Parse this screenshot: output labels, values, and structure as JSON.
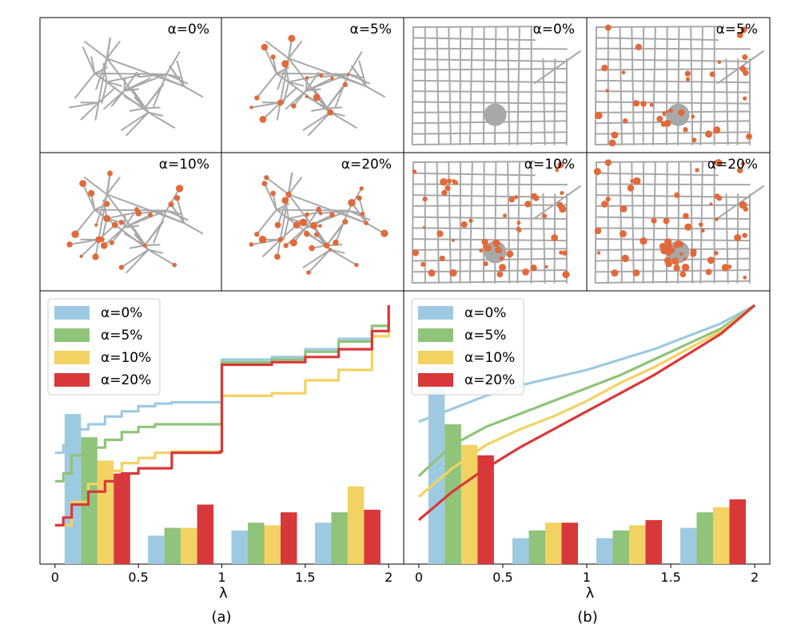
{
  "panel_labels": [
    "(a)",
    "(b)"
  ],
  "thumbnail_labels": {
    "a": [
      "α=0%",
      "α=5%",
      "α=10%",
      "α=20%"
    ],
    "b": [
      "α=0%",
      "α=5%",
      "α=10%",
      "α=20%"
    ]
  },
  "colors": {
    "alpha0": "#9ecae1",
    "alpha5": "#8fc47a",
    "alpha10": "#f2d262",
    "alpha20": "#d9383a",
    "network_edge": "#a8a8a8",
    "network_node": "#e06a3b"
  },
  "chart_data": [
    {
      "type": "bar",
      "panel": "(a)",
      "title": "",
      "xlabel": "λ",
      "ylabel": "",
      "xlim": [
        -0.09,
        2.09
      ],
      "ylim": [
        0,
        1
      ],
      "x_ticks": [
        0,
        0.5,
        1,
        1.5,
        2
      ],
      "x_tick_labels": [
        "0",
        "0.5",
        "1",
        "1.5",
        "2"
      ],
      "legend": [
        "α=0%",
        "α=5%",
        "α=10%",
        "α=20%"
      ],
      "legend_position": "top-left",
      "categories": [
        "0–0.5",
        "0.5–1",
        "1–1.5",
        "1.5–2"
      ],
      "series": [
        {
          "name": "α=0%",
          "values": [
            0.58,
            0.11,
            0.13,
            0.16
          ]
        },
        {
          "name": "α=5%",
          "values": [
            0.49,
            0.14,
            0.16,
            0.2
          ]
        },
        {
          "name": "α=10%",
          "values": [
            0.4,
            0.14,
            0.15,
            0.3
          ]
        },
        {
          "name": "α=20%",
          "values": [
            0.35,
            0.23,
            0.2,
            0.21
          ]
        }
      ],
      "cdf_series": [
        {
          "name": "α=0%",
          "x": [
            0,
            0.05,
            0.1,
            0.2,
            0.3,
            0.4,
            0.5,
            0.6,
            0.7,
            0.99,
            1.0,
            1.3,
            1.5,
            1.7,
            1.9,
            2.0
          ],
          "y": [
            0.43,
            0.46,
            0.52,
            0.54,
            0.57,
            0.59,
            0.61,
            0.62,
            0.625,
            0.625,
            0.79,
            0.8,
            0.83,
            0.87,
            0.92,
            1.0
          ]
        },
        {
          "name": "α=5%",
          "x": [
            0,
            0.05,
            0.1,
            0.2,
            0.3,
            0.4,
            0.5,
            0.6,
            0.7,
            0.99,
            1.0,
            1.3,
            1.5,
            1.7,
            1.9,
            2.0
          ],
          "y": [
            0.32,
            0.35,
            0.42,
            0.45,
            0.48,
            0.51,
            0.53,
            0.54,
            0.54,
            0.54,
            0.78,
            0.79,
            0.82,
            0.86,
            0.92,
            1.0
          ]
        },
        {
          "name": "α=10%",
          "x": [
            0,
            0.1,
            0.2,
            0.3,
            0.4,
            0.5,
            0.6,
            0.7,
            0.99,
            1.0,
            1.3,
            1.5,
            1.7,
            1.9,
            2.0
          ],
          "y": [
            0.15,
            0.24,
            0.31,
            0.36,
            0.39,
            0.41,
            0.43,
            0.435,
            0.435,
            0.65,
            0.66,
            0.71,
            0.75,
            0.88,
            1.0
          ]
        },
        {
          "name": "α=20%",
          "x": [
            0,
            0.05,
            0.1,
            0.2,
            0.3,
            0.4,
            0.5,
            0.7,
            0.99,
            1.0,
            1.3,
            1.5,
            1.7,
            1.9,
            2.0
          ],
          "y": [
            0.15,
            0.18,
            0.23,
            0.28,
            0.32,
            0.35,
            0.37,
            0.43,
            0.435,
            0.77,
            0.78,
            0.8,
            0.83,
            0.9,
            1.0
          ]
        }
      ]
    },
    {
      "type": "bar",
      "panel": "(b)",
      "title": "",
      "xlabel": "λ",
      "ylabel": "",
      "xlim": [
        -0.09,
        2.09
      ],
      "ylim": [
        0,
        1
      ],
      "x_ticks": [
        0,
        0.5,
        1,
        1.5,
        2
      ],
      "x_tick_labels": [
        "0",
        "0.5",
        "1",
        "1.5",
        "2"
      ],
      "legend": [
        "α=0%",
        "α=5%",
        "α=10%",
        "α=20%"
      ],
      "legend_position": "top-left",
      "categories": [
        "0–0.5",
        "0.5–1",
        "1–1.5",
        "1.5–2"
      ],
      "series": [
        {
          "name": "α=0%",
          "values": [
            0.7,
            0.1,
            0.1,
            0.14
          ]
        },
        {
          "name": "α=5%",
          "values": [
            0.54,
            0.13,
            0.13,
            0.2
          ]
        },
        {
          "name": "α=10%",
          "values": [
            0.46,
            0.16,
            0.15,
            0.22
          ]
        },
        {
          "name": "α=20%",
          "values": [
            0.42,
            0.16,
            0.17,
            0.25
          ]
        }
      ],
      "cdf_series": [
        {
          "name": "α=0%",
          "x": [
            0,
            0.2,
            0.4,
            0.6,
            0.8,
            1.0,
            1.2,
            1.4,
            1.6,
            1.8,
            2.0
          ],
          "y": [
            0.55,
            0.6,
            0.65,
            0.69,
            0.72,
            0.75,
            0.79,
            0.83,
            0.88,
            0.93,
            1.0
          ]
        },
        {
          "name": "α=5%",
          "x": [
            0,
            0.2,
            0.4,
            0.6,
            0.8,
            1.0,
            1.2,
            1.4,
            1.6,
            1.8,
            2.0
          ],
          "y": [
            0.34,
            0.46,
            0.53,
            0.58,
            0.63,
            0.68,
            0.73,
            0.79,
            0.85,
            0.91,
            1.0
          ]
        },
        {
          "name": "α=10%",
          "x": [
            0,
            0.2,
            0.4,
            0.6,
            0.8,
            1.0,
            1.2,
            1.4,
            1.6,
            1.8,
            2.0
          ],
          "y": [
            0.26,
            0.37,
            0.46,
            0.52,
            0.57,
            0.63,
            0.7,
            0.76,
            0.83,
            0.9,
            1.0
          ]
        },
        {
          "name": "α=20%",
          "x": [
            0,
            0.2,
            0.4,
            0.6,
            0.8,
            1.0,
            1.2,
            1.4,
            1.6,
            1.8,
            2.0
          ],
          "y": [
            0.17,
            0.28,
            0.37,
            0.45,
            0.52,
            0.59,
            0.66,
            0.73,
            0.81,
            0.89,
            1.0
          ]
        }
      ]
    }
  ]
}
